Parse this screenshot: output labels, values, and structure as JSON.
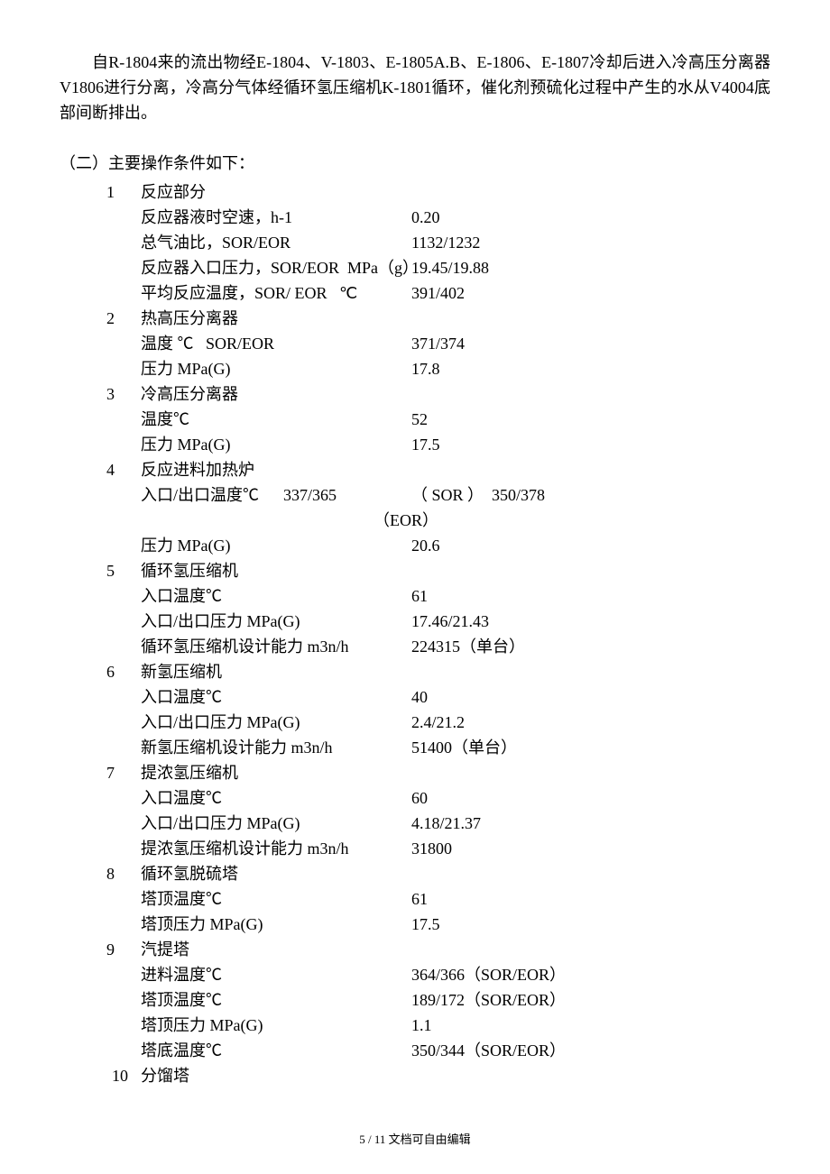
{
  "intro": "自R-1804来的流出物经E-1804、V-1803、E-1805A.B、E-1806、E-1807冷却后进入冷高压分离器V1806进行分离，冷高分气体经循环氢压缩机K-1801循环，催化剂预硫化过程中产生的水从V4004底部间断排出。",
  "sectionHeading": "（二）主要操作条件如下：",
  "sections": [
    {
      "num": "1",
      "title": "反应部分",
      "rows": [
        {
          "label": "反应器液时空速，h-1",
          "value": "0.20"
        },
        {
          "label": "总气油比，SOR/EOR",
          "value": "1132/1232"
        },
        {
          "label": "反应器入口压力，SOR/EOR  MPa（g）",
          "value": "19.45/19.88"
        },
        {
          "label": "平均反应温度，SOR/ EOR   ℃",
          "value": "391/402"
        }
      ]
    },
    {
      "num": "2",
      "title": "热高压分离器",
      "rows": [
        {
          "label": "温度 ℃   SOR/EOR",
          "value": "371/374"
        },
        {
          "label": "压力 MPa(G)",
          "value": "17.8"
        }
      ]
    },
    {
      "num": "3",
      "title": "冷高压分离器",
      "rows": [
        {
          "label": "温度℃",
          "value": "52"
        },
        {
          "label": "压力 MPa(G)",
          "value": "17.5"
        }
      ]
    },
    {
      "num": "4",
      "title": "反应进料加热炉",
      "rows": [
        {
          "label": "入口/出口温度℃      337/365",
          "value": "（ SOR ）  350/378"
        }
      ],
      "eor": "（EOR）",
      "after": [
        {
          "label": "压力 MPa(G)",
          "value": "20.6"
        }
      ]
    },
    {
      "num": "5",
      "title": "循环氢压缩机",
      "rows": [
        {
          "label": "入口温度℃",
          "value": "61"
        },
        {
          "label": "入口/出口压力 MPa(G)",
          "value": "17.46/21.43"
        },
        {
          "label": "循环氢压缩机设计能力 m3n/h",
          "value": "224315（单台）"
        }
      ]
    },
    {
      "num": "6",
      "title": "新氢压缩机",
      "rows": [
        {
          "label": "入口温度℃",
          "value": "40"
        },
        {
          "label": "入口/出口压力 MPa(G)",
          "value": "2.4/21.2"
        },
        {
          "label": "新氢压缩机设计能力 m3n/h",
          "value": "51400（单台）"
        }
      ]
    },
    {
      "num": "7",
      "title": "提浓氢压缩机",
      "rows": [
        {
          "label": "入口温度℃",
          "value": "60"
        },
        {
          "label": "入口/出口压力 MPa(G)",
          "value": "4.18/21.37"
        },
        {
          "label": "提浓氢压缩机设计能力 m3n/h",
          "value": "31800"
        }
      ]
    },
    {
      "num": "8",
      "title": "循环氢脱硫塔",
      "rows": [
        {
          "label": "塔顶温度℃",
          "value": "61"
        },
        {
          "label": "塔顶压力 MPa(G)",
          "value": "17.5"
        }
      ]
    },
    {
      "num": "9",
      "title": "汽提塔",
      "rows": [
        {
          "label": "进料温度℃",
          "value": "364/366（SOR/EOR）"
        },
        {
          "label": "塔顶温度℃",
          "value": "189/172（SOR/EOR）"
        },
        {
          "label": "塔顶压力 MPa(G)",
          "value": "1.1"
        },
        {
          "label": "塔底温度℃",
          "value": "350/344（SOR/EOR）"
        }
      ]
    },
    {
      "num": "10",
      "title": "分馏塔",
      "rows": []
    }
  ],
  "footer": "5 / 11 文档可自由编辑"
}
